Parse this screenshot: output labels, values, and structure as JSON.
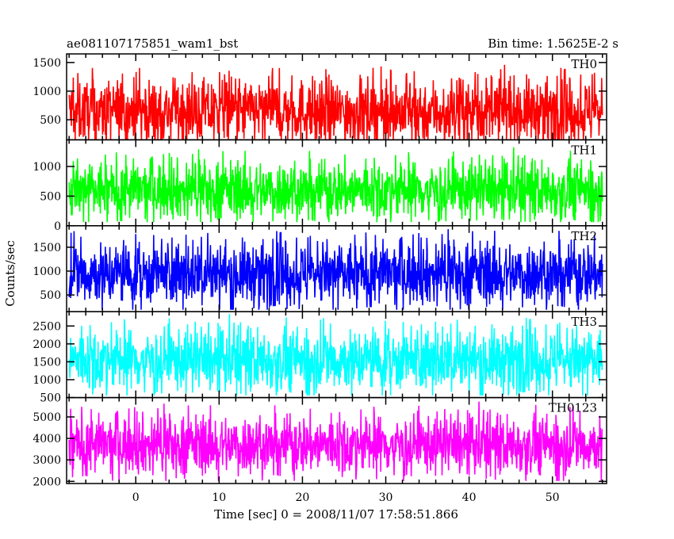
{
  "title_left": "ae081107175851_wam1_bst",
  "title_right": "Bin time: 1.5625E-2 s",
  "chart_data": {
    "type": "line",
    "xlabel": "Time [sec] 0 = 2008/11/07 17:58:51.866",
    "ylabel": "Counts/sec",
    "xlim": [
      -8.3,
      56.5
    ],
    "data_x_range": [
      -8.0,
      56.0
    ],
    "x_ticks": [
      0,
      10,
      20,
      30,
      40,
      50
    ],
    "bin_time_s": 0.015625,
    "panels": [
      {
        "name": "TH0",
        "color": "#ff0000",
        "ylim": [
          150,
          1650
        ],
        "y_ticks": [
          500,
          1000,
          1500
        ],
        "y_tick_labels": [
          "500",
          "1000",
          "1500"
        ],
        "mean": 650,
        "low_envelope": 180,
        "high_envelope": 1500,
        "peak": 1650
      },
      {
        "name": "TH1",
        "color": "#00ff00",
        "ylim": [
          0,
          1450
        ],
        "y_ticks": [
          0,
          500,
          1000
        ],
        "y_tick_labels": [
          "0",
          "500",
          "1000"
        ],
        "mean": 600,
        "low_envelope": 150,
        "high_envelope": 1300,
        "peak": 1450
      },
      {
        "name": "TH2",
        "color": "#0000ff",
        "ylim": [
          150,
          1950
        ],
        "y_ticks": [
          500,
          1000,
          1500
        ],
        "y_tick_labels": [
          "500",
          "1000",
          "1500"
        ],
        "mean": 950,
        "low_envelope": 250,
        "high_envelope": 1800,
        "peak": 1950
      },
      {
        "name": "TH3",
        "color": "#00ffff",
        "ylim": [
          500,
          2900
        ],
        "y_ticks": [
          500,
          1000,
          1500,
          2000,
          2500
        ],
        "y_tick_labels": [
          "500",
          "1000",
          "1500",
          "2000",
          "2500"
        ],
        "mean": 1550,
        "low_envelope": 650,
        "high_envelope": 2700,
        "peak": 2900
      },
      {
        "name": "TH0123",
        "color": "#ff00ff",
        "ylim": [
          1900,
          5900
        ],
        "y_ticks": [
          2000,
          3000,
          4000,
          5000
        ],
        "y_tick_labels": [
          "2000",
          "3000",
          "4000",
          "5000"
        ],
        "mean": 3700,
        "low_envelope": 2200,
        "high_envelope": 5400,
        "peak": 5800
      }
    ]
  }
}
